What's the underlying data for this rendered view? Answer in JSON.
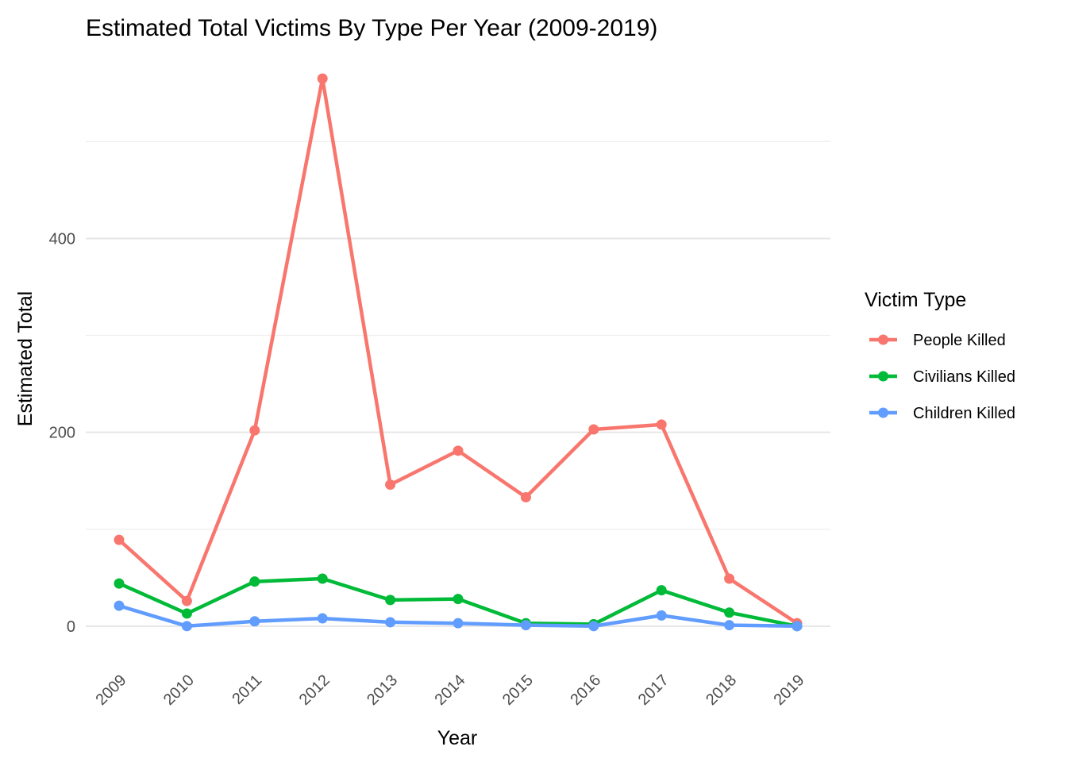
{
  "chart_data": {
    "type": "line",
    "title": "Estimated Total Victims By Type Per Year (2009-2019)",
    "xlabel": "Year",
    "ylabel": "Estimated Total",
    "x": [
      "2009",
      "2010",
      "2011",
      "2012",
      "2013",
      "2014",
      "2015",
      "2016",
      "2017",
      "2018",
      "2019"
    ],
    "ylim": [
      -37,
      565
    ],
    "yticks": [
      0,
      200,
      400
    ],
    "yminor": [
      100,
      300,
      500
    ],
    "grid": true,
    "legend": {
      "title": "Victim Type",
      "position": "right"
    },
    "series": [
      {
        "name": "People Killed",
        "color": "#F8766D",
        "values": [
          89,
          26,
          202,
          565,
          146,
          181,
          133,
          203,
          208,
          49,
          3
        ]
      },
      {
        "name": "Civilians Killed",
        "color": "#00BA38",
        "values": [
          44,
          13,
          46,
          49,
          27,
          28,
          3,
          2,
          37,
          14,
          0
        ]
      },
      {
        "name": "Children Killed",
        "color": "#619CFF",
        "values": [
          21,
          0,
          5,
          8,
          4,
          3,
          1,
          0,
          11,
          1,
          0
        ]
      }
    ]
  }
}
